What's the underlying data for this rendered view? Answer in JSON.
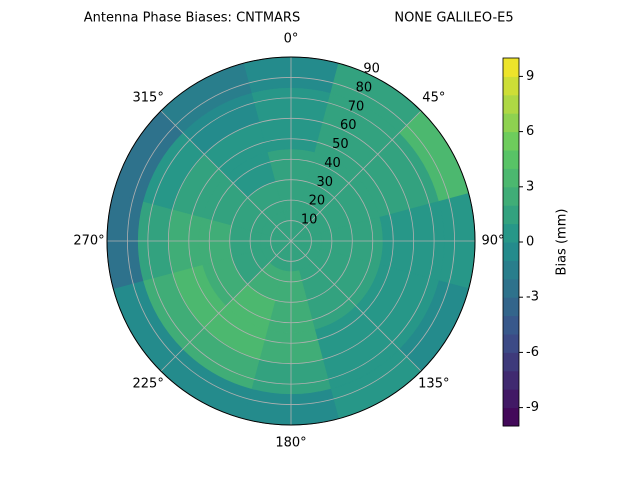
{
  "chart_data": {
    "type": "polar_contour",
    "title": "Antenna Phase Biases: CNTMARS",
    "subtitle": "NONE GALILEO-E5",
    "azimuth": [
      0,
      30,
      60,
      90,
      120,
      150,
      180,
      210,
      240,
      270,
      300,
      330
    ],
    "zenith": [
      7.5,
      22.5,
      37.5,
      52.5,
      67.5,
      82.5
    ],
    "values": [
      [
        1,
        1,
        1,
        1,
        1,
        1,
        1,
        1,
        1,
        1,
        1,
        1
      ],
      [
        1,
        1,
        1,
        1,
        1,
        1.5,
        2,
        2,
        1.5,
        1,
        1,
        1
      ],
      [
        1,
        1.5,
        1,
        1,
        1,
        1.5,
        2.5,
        3,
        2.5,
        2,
        1,
        0.5
      ],
      [
        0.5,
        1,
        1,
        0.5,
        0,
        0.5,
        2,
        3.5,
        3,
        2.5,
        1.5,
        0.5
      ],
      [
        0,
        1,
        1.5,
        0.5,
        0,
        0,
        1,
        2.5,
        2,
        1,
        0,
        -0.5
      ],
      [
        -1,
        1,
        3,
        0.5,
        -1,
        0.5,
        -1,
        -0.5,
        -1,
        -2.5,
        -3,
        -2
      ]
    ],
    "rlim": [
      0,
      90
    ],
    "rticks": [
      10,
      20,
      30,
      40,
      50,
      60,
      70,
      80,
      90
    ],
    "thetaticks": [
      {
        "value": 0,
        "label": "0°"
      },
      {
        "value": 45,
        "label": "45°"
      },
      {
        "value": 90,
        "label": "90°"
      },
      {
        "value": 135,
        "label": "135°"
      },
      {
        "value": 180,
        "label": "180°"
      },
      {
        "value": 225,
        "label": "225°"
      },
      {
        "value": 270,
        "label": "270°"
      },
      {
        "value": 315,
        "label": "315°"
      }
    ],
    "clim": [
      -10,
      10
    ],
    "levels": 20,
    "cticks": [
      -9,
      -6,
      -3,
      0,
      3,
      6,
      9
    ],
    "colorbar_label": "Bias (mm)",
    "colormap": [
      "#440154",
      "#3b528b",
      "#21918c",
      "#5ec962",
      "#fde725"
    ],
    "grid": true
  }
}
